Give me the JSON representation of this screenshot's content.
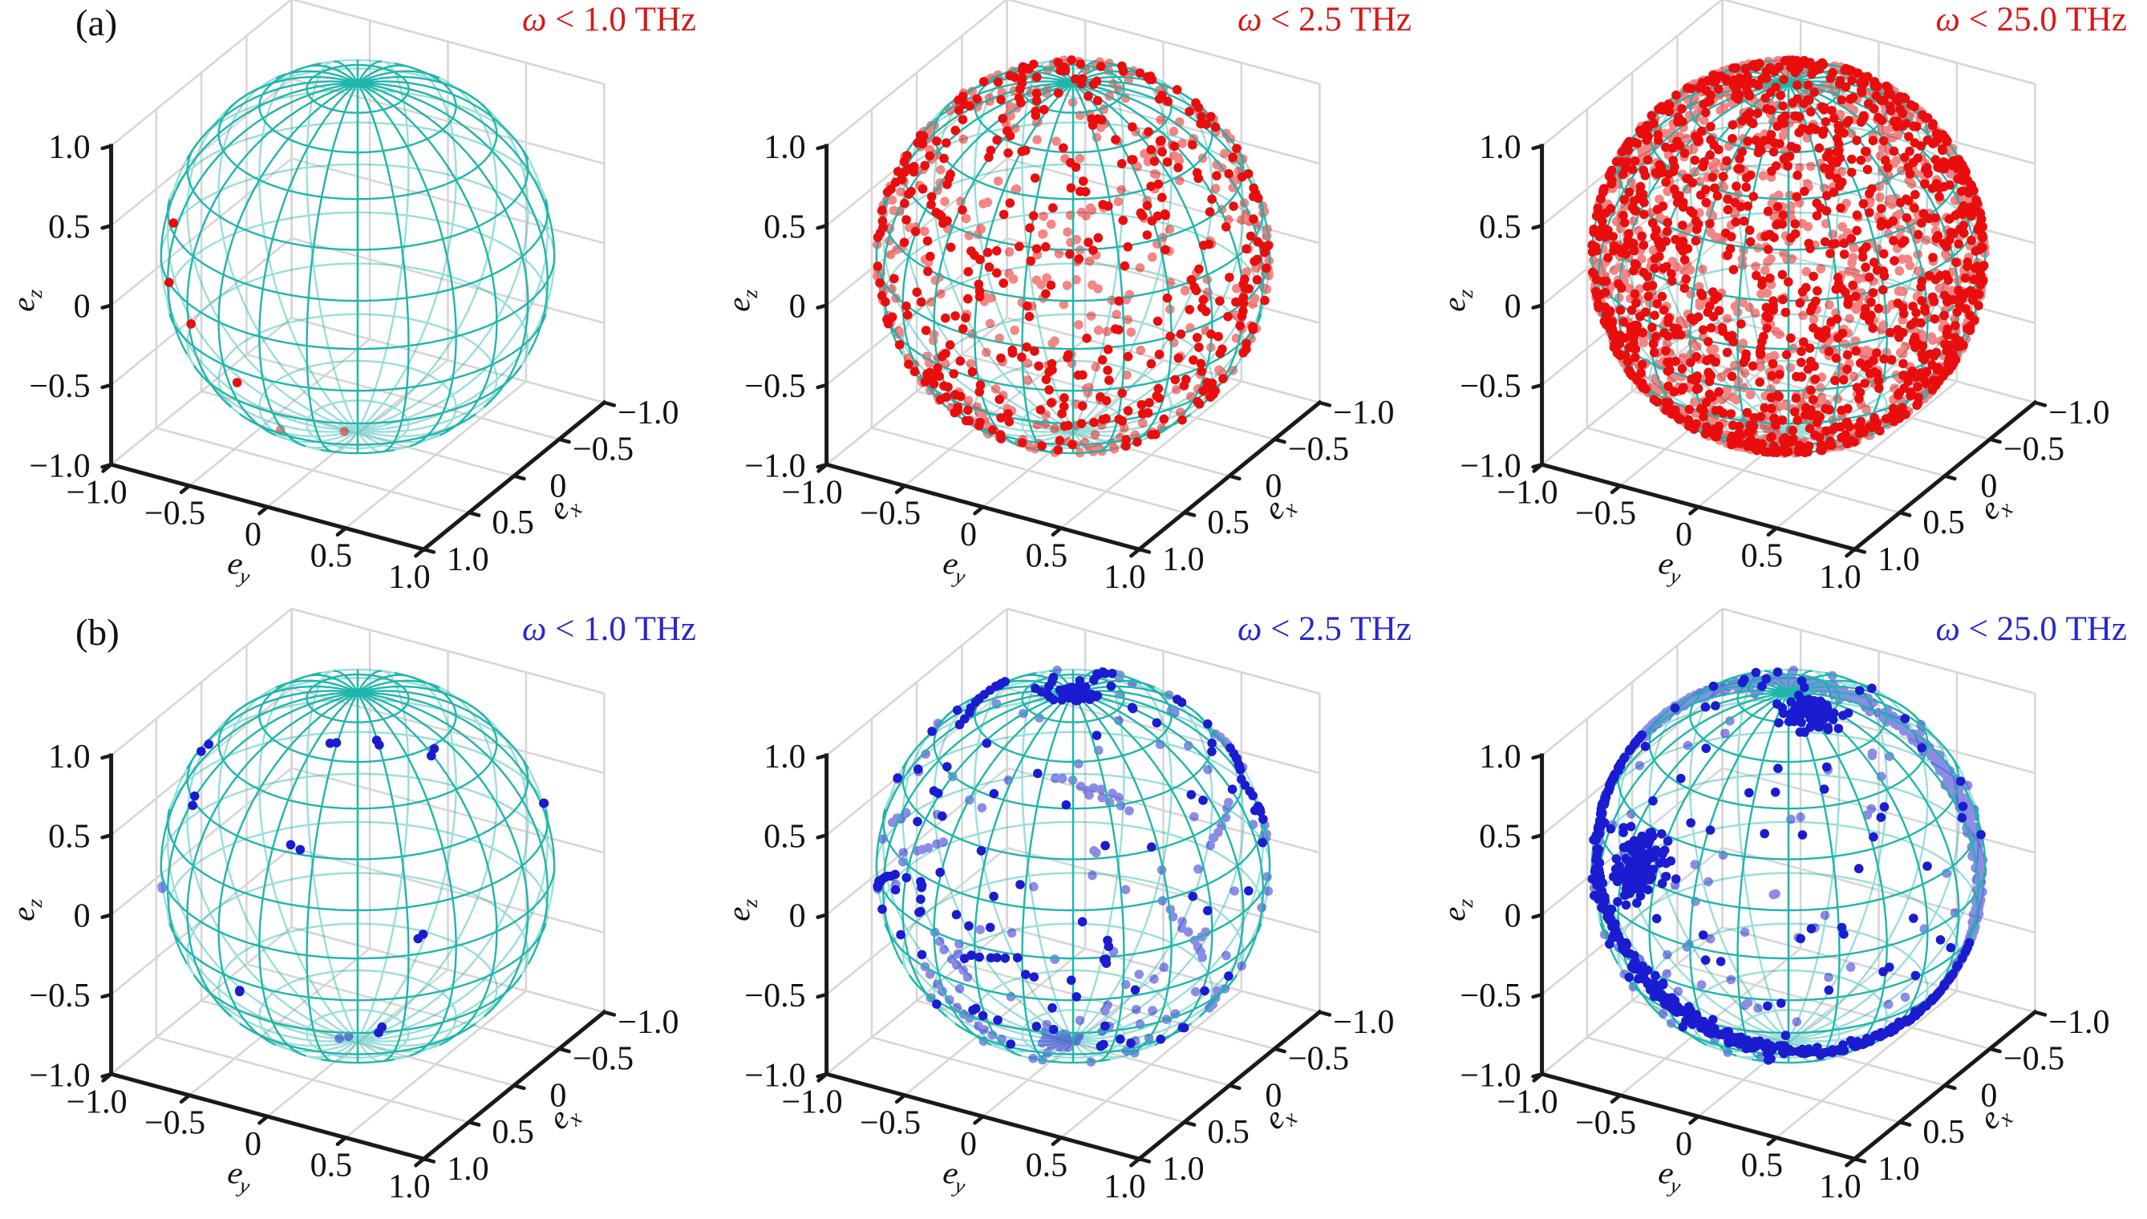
{
  "figure": {
    "kind": "matplotlib-3d-figure",
    "background": "#ffffff",
    "rows": 2,
    "cols": 3
  },
  "chart_data": {
    "type": "scatter",
    "subtype": "3d-scatter-on-unit-sphere",
    "description": "Unit polarization vectors plotted on a teal wireframe unit sphere for three phonon frequency cutoffs; row (a) red points, row (b) blue points.",
    "wireframe": {
      "color": "#1fb5ab",
      "meridians": 24,
      "parallel_step_deg": 15,
      "radius": 1,
      "back_opacity": 0.45
    },
    "marker_px": 5.8,
    "axis": {
      "label_base": "e",
      "x_sub": "x",
      "y_sub": "y",
      "z_sub": "z",
      "range": [
        -1,
        1
      ],
      "xy_tick_labels": [
        "−1.0",
        "−0.5",
        "0",
        "0.5",
        "1.0"
      ],
      "xy_tick_values": [
        -1,
        -0.5,
        0,
        0.5,
        1
      ],
      "z_tick_labels_top_down": [
        "1.0",
        "0.5",
        "0",
        "−0.5",
        "−1.0"
      ],
      "z_tick_values_top_down": [
        1,
        0.5,
        0,
        -0.5,
        -1
      ],
      "grid": true,
      "pane_grid_color": "#d7d7d7",
      "axis_line_color": "#1a1a1a",
      "tick_label_color": "#111111"
    },
    "rows": [
      {
        "label": "(a)",
        "point_color": "#ea0d0d",
        "title_color": "#d91717",
        "panels": [
          {
            "title": "ω < 1.0 THz",
            "title_parts": {
              "symbol": "ω",
              "rest": " < 1.0 THz"
            },
            "omega_cutoff_THz": 1.0,
            "points": {
              "mode": "explicit",
              "count": 6,
              "seed": 1,
              "unit_vectors": [
                [
                  0.632,
                  -0.717,
                  0.294
                ],
                [
                  0.725,
                  -0.689,
                  0.002
                ],
                [
                  0.874,
                  -0.474,
                  -0.111
                ],
                [
                  0.921,
                  -0.176,
                  -0.348
                ],
                [
                  0.361,
                  -0.258,
                  -0.929
                ],
                [
                  0.05,
                  -0.05,
                  -0.998
                ]
              ]
            }
          },
          {
            "title": "ω < 2.5 THz",
            "title_parts": {
              "symbol": "ω",
              "rest": " < 2.5 THz"
            },
            "omega_cutoff_THz": 2.5,
            "points": {
              "mode": "uniform",
              "count": 800,
              "seed": 42
            }
          },
          {
            "title": "ω < 25.0 THz",
            "title_parts": {
              "symbol": "ω",
              "rest": " < 25.0 THz"
            },
            "omega_cutoff_THz": 25.0,
            "points": {
              "mode": "uniform",
              "count": 2300,
              "seed": 77
            }
          }
        ]
      },
      {
        "label": "(b)",
        "point_color": "#1b1bd0",
        "title_color": "#2727cc",
        "panels": [
          {
            "title": "ω < 1.0 THz",
            "title_parts": {
              "symbol": "ω",
              "rest": " < 1.0 THz"
            },
            "omega_cutoff_THz": 1.0,
            "points": {
              "mode": "clusters",
              "count": 24,
              "sigma": 0.03,
              "seed": 5,
              "centers": [
                [
                  0.279,
                  -0.713,
                  0.643
                ],
                [
                  0.614,
                  -0.603,
                  0.51
                ],
                [
                  0.379,
                  0.083,
                  0.922
                ],
                [
                  0.3,
                  0.25,
                  0.92
                ],
                [
                  -0.601,
                  0.75,
                  0.274
                ],
                [
                  0.514,
                  -0.835,
                  -0.053
                ],
                [
                  0.921,
                  -0.176,
                  -0.348
                ],
                [
                  0.679,
                  0.569,
                  -0.465
                ],
                [
                  0.649,
                  0.759,
                  0.057
                ],
                [
                  0.02,
                  -0.08,
                  -0.996
                ],
                [
                  0.1,
                  0.55,
                  0.83
                ],
                [
                  0.85,
                  0.1,
                  0.52
                ]
              ]
            }
          },
          {
            "title": "ω < 2.5 THz",
            "title_parts": {
              "symbol": "ω",
              "rest": " < 2.5 THz"
            },
            "omega_cutoff_THz": 2.5,
            "points": {
              "seed": 9,
              "count": 400,
              "components": [
                {
                  "mode": "clusters",
                  "count": 50,
                  "sigma": 0.06,
                  "centers": [
                    [
                      0,
                      0,
                      1
                    ]
                  ]
                },
                {
                  "mode": "clusters",
                  "count": 45,
                  "sigma": 0.05,
                  "centers": [
                    [
                      0.05,
                      -0.05,
                      -1
                    ]
                  ]
                },
                {
                  "mode": "chains",
                  "chains": 16,
                  "step": 0.05,
                  "min_len": 4,
                  "max_len": 12
                },
                {
                  "mode": "uniform",
                  "count": 175
                }
              ]
            }
          },
          {
            "title": "ω < 25.0 THz",
            "title_parts": {
              "symbol": "ω",
              "rest": " < 25.0 THz"
            },
            "omega_cutoff_THz": 25.0,
            "points": {
              "seed": 11,
              "count": 1230,
              "components": [
                {
                  "mode": "ring",
                  "normal": [
                    0.45,
                    0.52,
                    0.72
                  ],
                  "count": 620,
                  "sigma": 0.035
                },
                {
                  "mode": "ring",
                  "normal": [
                    0.45,
                    0.52,
                    0.72
                  ],
                  "count": 240,
                  "sigma": 0.05,
                  "theta_centers": [
                    0.7,
                    2.4,
                    3.3,
                    5.1
                  ],
                  "theta_spread": 0.25
                },
                {
                  "mode": "clusters",
                  "count": 130,
                  "sigma": 0.09,
                  "centers": [
                    [
                      0.87,
                      -0.39,
                      0.3
                    ]
                  ]
                },
                {
                  "mode": "clusters",
                  "count": 80,
                  "sigma": 0.07,
                  "centers": [
                    [
                      0.1,
                      0.2,
                      0.97
                    ]
                  ]
                },
                {
                  "mode": "uniform",
                  "count": 160
                }
              ]
            }
          }
        ]
      }
    ]
  }
}
